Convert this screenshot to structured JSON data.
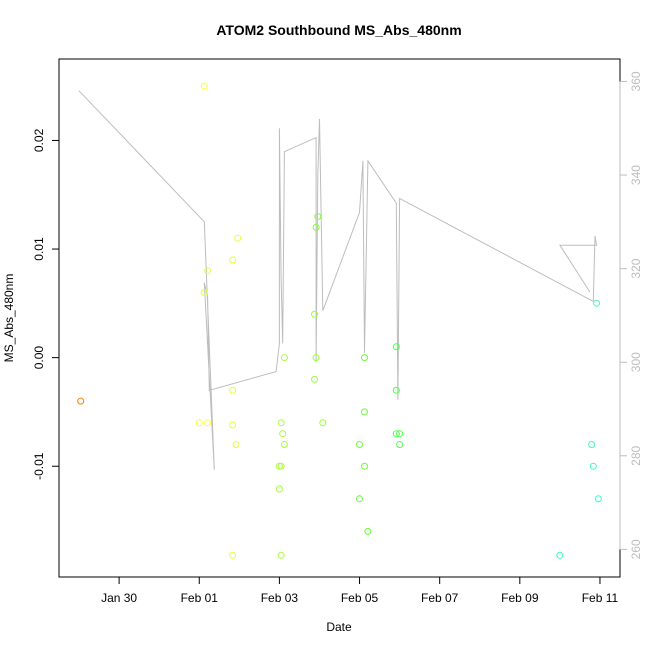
{
  "chart_data": {
    "type": "scatter",
    "title": "ATOM2 Southbound MS_Abs_480nm",
    "xlabel": "Date",
    "ylabel": "MS_Abs_480nm",
    "x_unit": "date",
    "xlim": [
      "2024-01-28T12:00",
      "2024-02-11T12:00"
    ],
    "ylim": [
      -0.0202,
      0.0275
    ],
    "x_ticks": [
      {
        "date": "2024-01-30T00:00",
        "label": "Jan 30"
      },
      {
        "date": "2024-02-01T00:00",
        "label": "Feb 01"
      },
      {
        "date": "2024-02-03T00:00",
        "label": "Feb 03"
      },
      {
        "date": "2024-02-05T00:00",
        "label": "Feb 05"
      },
      {
        "date": "2024-02-07T00:00",
        "label": "Feb 07"
      },
      {
        "date": "2024-02-09T00:00",
        "label": "Feb 09"
      },
      {
        "date": "2024-02-11T00:00",
        "label": "Feb 11"
      }
    ],
    "y_ticks": [
      {
        "value": -0.01,
        "label": "-0.01"
      },
      {
        "value": 0.0,
        "label": "0.00"
      },
      {
        "value": 0.01,
        "label": "0.01"
      },
      {
        "value": 0.02,
        "label": "0.02"
      }
    ],
    "y2_lim": [
      254.1,
      364.8
    ],
    "y2_ticks": [
      {
        "value": 260,
        "label": "260"
      },
      {
        "value": 280,
        "label": "280"
      },
      {
        "value": 300,
        "label": "300"
      },
      {
        "value": 320,
        "label": "320"
      },
      {
        "value": 340,
        "label": "340"
      },
      {
        "value": 360,
        "label": "360"
      }
    ],
    "grid": false,
    "points": [
      {
        "x": "2024-01-29T01:00",
        "y": -0.004,
        "color": "#ff8000"
      },
      {
        "x": "2024-02-01T03:00",
        "y": 0.025,
        "color": "#ffff33"
      },
      {
        "x": "2024-02-01T03:00",
        "y": 0.006,
        "color": "#e6ff33"
      },
      {
        "x": "2024-02-01T05:00",
        "y": 0.008,
        "color": "#e6ff33"
      },
      {
        "x": "2024-02-01T00:00",
        "y": -0.006,
        "color": "#ffff33"
      },
      {
        "x": "2024-02-01T05:00",
        "y": -0.006,
        "color": "#ffff33"
      },
      {
        "x": "2024-02-01T20:00",
        "y": 0.009,
        "color": "#e6ff33"
      },
      {
        "x": "2024-02-01T23:00",
        "y": 0.011,
        "color": "#e6ff33"
      },
      {
        "x": "2024-02-01T20:00",
        "y": -0.003,
        "color": "#e6ff33"
      },
      {
        "x": "2024-02-01T20:00",
        "y": -0.0062,
        "color": "#e6ff33"
      },
      {
        "x": "2024-02-01T22:00",
        "y": -0.008,
        "color": "#e6ff33"
      },
      {
        "x": "2024-02-01T20:00",
        "y": -0.0182,
        "color": "#e6ff33"
      },
      {
        "x": "2024-02-03T01:00",
        "y": -0.006,
        "color": "#a6ff33"
      },
      {
        "x": "2024-02-03T02:00",
        "y": -0.007,
        "color": "#a6ff33"
      },
      {
        "x": "2024-02-03T03:00",
        "y": -0.008,
        "color": "#a6ff33"
      },
      {
        "x": "2024-02-03T00:00",
        "y": -0.01,
        "color": "#a6ff33"
      },
      {
        "x": "2024-02-03T01:00",
        "y": -0.01,
        "color": "#a6ff33"
      },
      {
        "x": "2024-02-03T00:00",
        "y": -0.0121,
        "color": "#a6ff33"
      },
      {
        "x": "2024-02-03T01:00",
        "y": -0.0182,
        "color": "#a6ff33"
      },
      {
        "x": "2024-02-03T03:00",
        "y": 0.0,
        "color": "#a6ff33"
      },
      {
        "x": "2024-02-03T21:00",
        "y": 0.004,
        "color": "#99ff33"
      },
      {
        "x": "2024-02-03T21:00",
        "y": -0.002,
        "color": "#99ff33"
      },
      {
        "x": "2024-02-03T22:00",
        "y": 0.0,
        "color": "#99ff33"
      },
      {
        "x": "2024-02-03T22:00",
        "y": 0.012,
        "color": "#80ff33"
      },
      {
        "x": "2024-02-03T23:00",
        "y": 0.013,
        "color": "#80ff33"
      },
      {
        "x": "2024-02-04T02:00",
        "y": -0.006,
        "color": "#99ff33"
      },
      {
        "x": "2024-02-05T00:00",
        "y": -0.008,
        "color": "#66ff33"
      },
      {
        "x": "2024-02-05T00:00",
        "y": -0.013,
        "color": "#66ff33"
      },
      {
        "x": "2024-02-05T03:00",
        "y": -0.005,
        "color": "#66ff33"
      },
      {
        "x": "2024-02-05T03:00",
        "y": -0.01,
        "color": "#66ff33"
      },
      {
        "x": "2024-02-05T03:00",
        "y": 0.0,
        "color": "#66ff33"
      },
      {
        "x": "2024-02-05T05:00",
        "y": -0.016,
        "color": "#66ff33"
      },
      {
        "x": "2024-02-05T22:00",
        "y": 0.001,
        "color": "#4dff4d"
      },
      {
        "x": "2024-02-05T22:00",
        "y": -0.003,
        "color": "#4dff4d"
      },
      {
        "x": "2024-02-05T22:00",
        "y": -0.007,
        "color": "#4dff4d"
      },
      {
        "x": "2024-02-06T00:00",
        "y": -0.007,
        "color": "#4dff4d"
      },
      {
        "x": "2024-02-06T00:00",
        "y": -0.008,
        "color": "#4dff4d"
      },
      {
        "x": "2024-02-10T00:00",
        "y": -0.0182,
        "color": "#33ffb3"
      },
      {
        "x": "2024-02-10T19:00",
        "y": -0.008,
        "color": "#33ffb3"
      },
      {
        "x": "2024-02-10T20:00",
        "y": -0.01,
        "color": "#33ffc6"
      },
      {
        "x": "2024-02-10T22:00",
        "y": 0.005,
        "color": "#33ffcc"
      },
      {
        "x": "2024-02-10T23:00",
        "y": -0.013,
        "color": "#33ffcc"
      }
    ],
    "line_series": {
      "axis": "right",
      "color": "#bdbdbd",
      "points": [
        {
          "x": "2024-01-29T00:00",
          "y": 358
        },
        {
          "x": "2024-02-01T03:00",
          "y": 330
        },
        {
          "x": "2024-02-01T09:00",
          "y": 277
        },
        {
          "x": "2024-02-01T03:00",
          "y": 317
        },
        {
          "x": "2024-02-01T05:00",
          "y": 314
        },
        {
          "x": "2024-02-01T06:00",
          "y": 294
        },
        {
          "x": "2024-02-02T22:00",
          "y": 298
        },
        {
          "x": "2024-02-03T00:00",
          "y": 304
        },
        {
          "x": "2024-02-03T00:00",
          "y": 350
        },
        {
          "x": "2024-02-03T01:00",
          "y": 318
        },
        {
          "x": "2024-02-03T02:00",
          "y": 304
        },
        {
          "x": "2024-02-03T03:00",
          "y": 345
        },
        {
          "x": "2024-02-03T22:00",
          "y": 348
        },
        {
          "x": "2024-02-03T22:00",
          "y": 300
        },
        {
          "x": "2024-02-03T23:00",
          "y": 340
        },
        {
          "x": "2024-02-04T00:00",
          "y": 352
        },
        {
          "x": "2024-02-04T02:00",
          "y": 311
        },
        {
          "x": "2024-02-05T00:00",
          "y": 332
        },
        {
          "x": "2024-02-05T02:00",
          "y": 343
        },
        {
          "x": "2024-02-05T03:00",
          "y": 302
        },
        {
          "x": "2024-02-05T05:00",
          "y": 343
        },
        {
          "x": "2024-02-05T22:00",
          "y": 334
        },
        {
          "x": "2024-02-05T23:00",
          "y": 292
        },
        {
          "x": "2024-02-06T00:00",
          "y": 335
        },
        {
          "x": "2024-02-10T20:00",
          "y": 313
        },
        {
          "x": "2024-02-10T21:00",
          "y": 327
        },
        {
          "x": "2024-02-10T22:00",
          "y": 325
        },
        {
          "x": "2024-02-10T00:00",
          "y": 325
        },
        {
          "x": "2024-02-10T18:00",
          "y": 315
        }
      ]
    }
  }
}
